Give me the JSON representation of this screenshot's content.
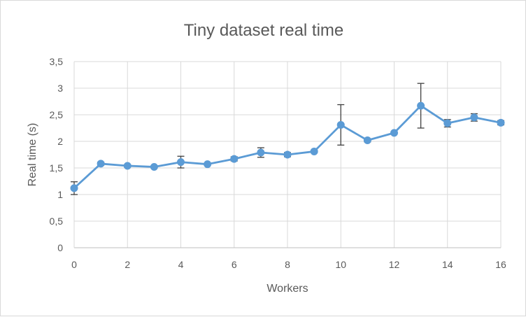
{
  "chart_data": {
    "type": "line",
    "title": "Tiny dataset real time",
    "xlabel": "Workers",
    "ylabel": "Real time (s)",
    "xlim": [
      0,
      16
    ],
    "ylim": [
      0,
      3.5
    ],
    "x_ticks": [
      "0",
      "2",
      "4",
      "6",
      "8",
      "10",
      "12",
      "14",
      "16"
    ],
    "y_ticks": [
      "0",
      "0,5",
      "1",
      "1,5",
      "2",
      "2,5",
      "3",
      "3,5"
    ],
    "grid": true,
    "legend": "none",
    "series_color": "#5b9bd5",
    "error_bar_color": "#404040",
    "series": [
      {
        "x": [
          0,
          1,
          2,
          3,
          4,
          5,
          6,
          7,
          8,
          9,
          10,
          11,
          12,
          13,
          14,
          15,
          16
        ],
        "y": [
          1.12,
          1.58,
          1.54,
          1.52,
          1.61,
          1.57,
          1.67,
          1.79,
          1.75,
          1.81,
          2.31,
          2.02,
          2.16,
          2.67,
          2.34,
          2.45,
          2.35
        ],
        "error": [
          0.12,
          0.03,
          0.02,
          0.02,
          0.11,
          0.02,
          0.04,
          0.09,
          0.04,
          0.02,
          0.38,
          0.03,
          0.02,
          0.42,
          0.07,
          0.07,
          0.04
        ]
      }
    ]
  }
}
